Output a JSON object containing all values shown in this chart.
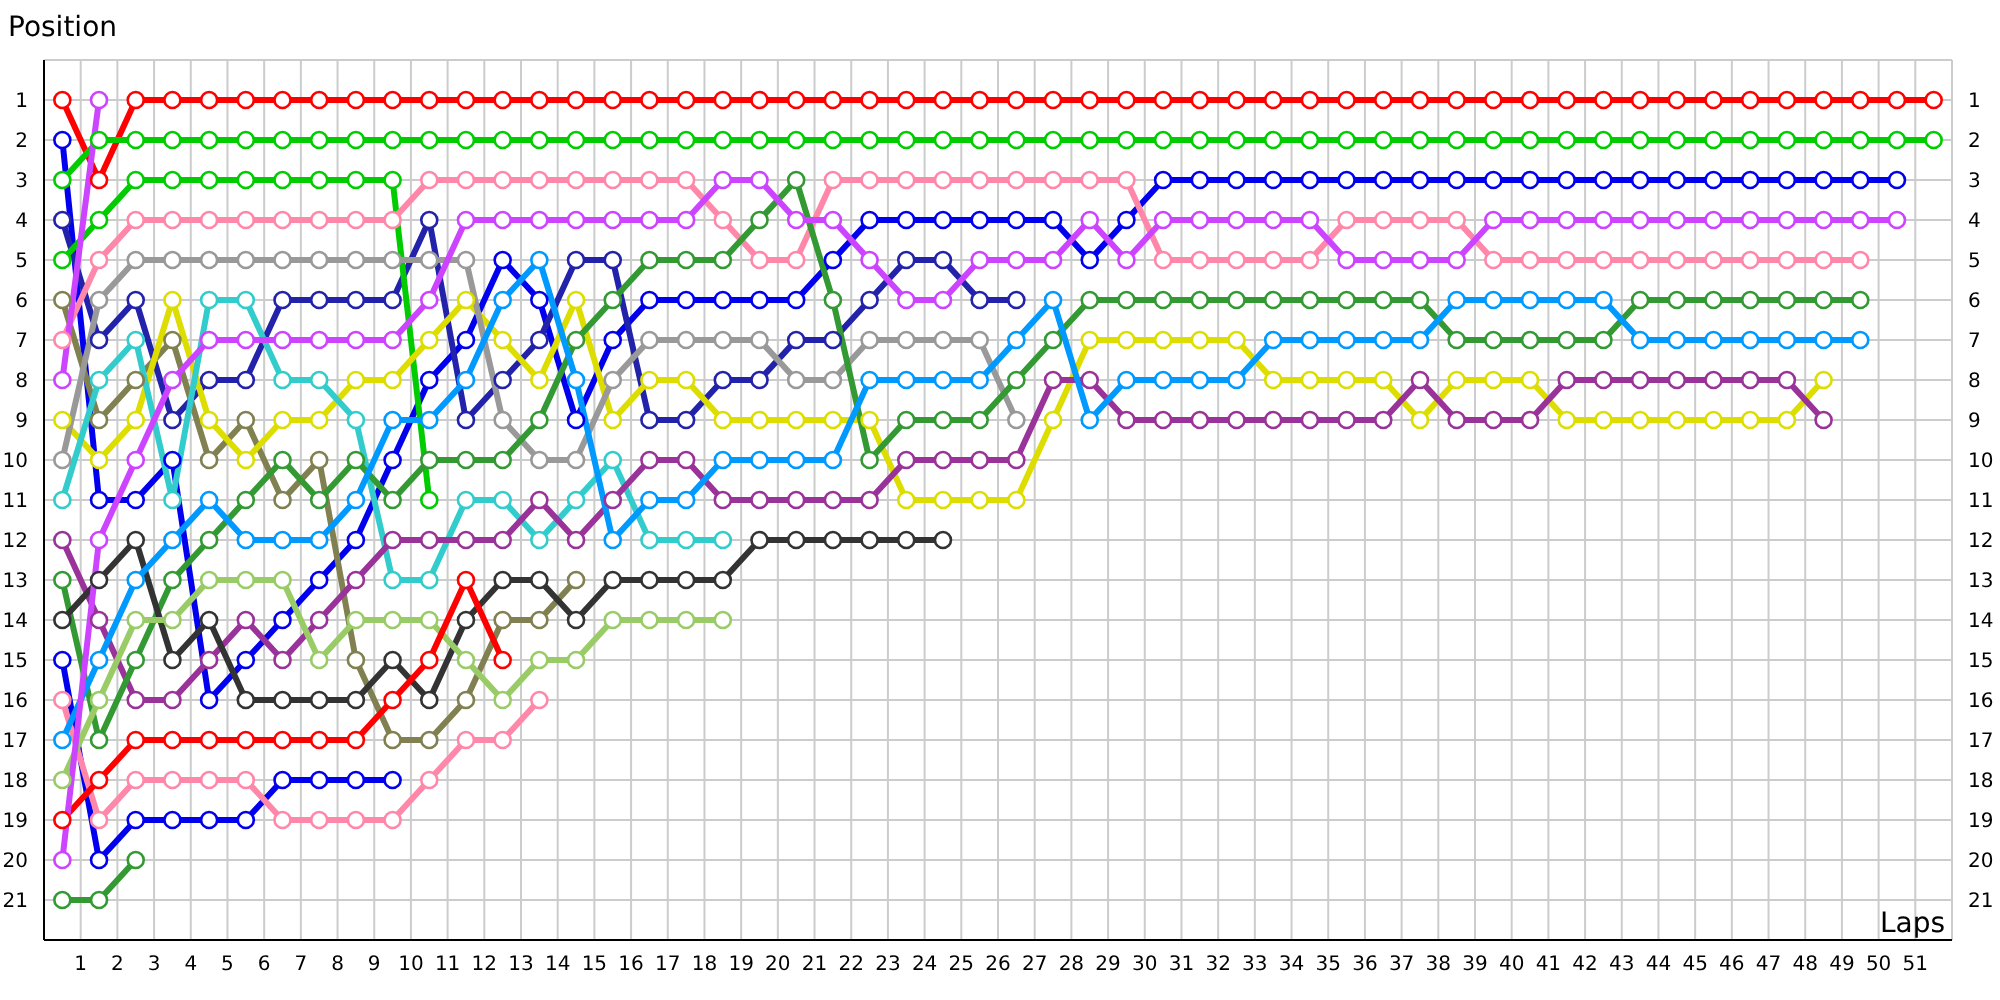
{
  "chart_data": {
    "type": "line",
    "xlabel": "Laps",
    "ylabel": "Position",
    "x": [
      0,
      1,
      2,
      3,
      4,
      5,
      6,
      7,
      8,
      9,
      10,
      11,
      12,
      13,
      14,
      15,
      16,
      17,
      18,
      19,
      20,
      21,
      22,
      23,
      24,
      25,
      26,
      27,
      28,
      29,
      30,
      31,
      32,
      33,
      34,
      35,
      36,
      37,
      38,
      39,
      40,
      41,
      42,
      43,
      44,
      45,
      46,
      47,
      48,
      49,
      50,
      51
    ],
    "xlim": [
      -0.5,
      51.5
    ],
    "xticks": [
      {
        "value": 0.5,
        "label": "1"
      },
      {
        "value": 1.5,
        "label": "2"
      },
      {
        "value": 2.5,
        "label": "3"
      },
      {
        "value": 3.5,
        "label": "4"
      },
      {
        "value": 4.5,
        "label": "5"
      },
      {
        "value": 5.5,
        "label": "6"
      },
      {
        "value": 6.5,
        "label": "7"
      },
      {
        "value": 7.5,
        "label": "8"
      },
      {
        "value": 8.5,
        "label": "9"
      },
      {
        "value": 9.5,
        "label": "10"
      },
      {
        "value": 10.5,
        "label": "11"
      },
      {
        "value": 11.5,
        "label": "12"
      },
      {
        "value": 12.5,
        "label": "13"
      },
      {
        "value": 13.5,
        "label": "14"
      },
      {
        "value": 14.5,
        "label": "15"
      },
      {
        "value": 15.5,
        "label": "16"
      },
      {
        "value": 16.5,
        "label": "17"
      },
      {
        "value": 17.5,
        "label": "18"
      },
      {
        "value": 18.5,
        "label": "19"
      },
      {
        "value": 19.5,
        "label": "20"
      },
      {
        "value": 20.5,
        "label": "21"
      },
      {
        "value": 21.5,
        "label": "22"
      },
      {
        "value": 22.5,
        "label": "23"
      },
      {
        "value": 23.5,
        "label": "24"
      },
      {
        "value": 24.5,
        "label": "25"
      },
      {
        "value": 25.5,
        "label": "26"
      },
      {
        "value": 26.5,
        "label": "27"
      },
      {
        "value": 27.5,
        "label": "28"
      },
      {
        "value": 28.5,
        "label": "29"
      },
      {
        "value": 29.5,
        "label": "30"
      },
      {
        "value": 30.5,
        "label": "31"
      },
      {
        "value": 31.5,
        "label": "32"
      },
      {
        "value": 32.5,
        "label": "33"
      },
      {
        "value": 33.5,
        "label": "34"
      },
      {
        "value": 34.5,
        "label": "35"
      },
      {
        "value": 35.5,
        "label": "36"
      },
      {
        "value": 36.5,
        "label": "37"
      },
      {
        "value": 37.5,
        "label": "38"
      },
      {
        "value": 38.5,
        "label": "39"
      },
      {
        "value": 39.5,
        "label": "40"
      },
      {
        "value": 40.5,
        "label": "41"
      },
      {
        "value": 41.5,
        "label": "42"
      },
      {
        "value": 42.5,
        "label": "43"
      },
      {
        "value": 43.5,
        "label": "44"
      },
      {
        "value": 44.5,
        "label": "45"
      },
      {
        "value": 45.5,
        "label": "46"
      },
      {
        "value": 46.5,
        "label": "47"
      },
      {
        "value": 47.5,
        "label": "48"
      },
      {
        "value": 48.5,
        "label": "49"
      },
      {
        "value": 49.5,
        "label": "50"
      },
      {
        "value": 50.5,
        "label": "51"
      }
    ],
    "ylim": [
      22,
      0
    ],
    "yticks": [
      1,
      2,
      3,
      4,
      5,
      6,
      7,
      8,
      9,
      10,
      11,
      12,
      13,
      14,
      15,
      16,
      17,
      18,
      19,
      20,
      21
    ],
    "y2lim": [
      22,
      0
    ],
    "y2ticks": [
      1,
      2,
      3,
      4,
      5,
      6,
      7,
      8,
      9,
      10,
      11,
      12,
      13,
      14,
      15,
      16,
      17,
      18,
      19,
      20,
      21
    ],
    "grid": true,
    "marker": "circle",
    "line_style": "solid",
    "series": [
      {
        "color": "#ff0000",
        "values": [
          1,
          3,
          1,
          1,
          1,
          1,
          1,
          1,
          1,
          1,
          1,
          1,
          1,
          1,
          1,
          1,
          1,
          1,
          1,
          1,
          1,
          1,
          1,
          1,
          1,
          1,
          1,
          1,
          1,
          1,
          1,
          1,
          1,
          1,
          1,
          1,
          1,
          1,
          1,
          1,
          1,
          1,
          1,
          1,
          1,
          1,
          1,
          1,
          1,
          1,
          1,
          1
        ]
      },
      {
        "color": "#0000ee",
        "values": [
          2,
          11,
          11,
          10,
          16,
          15,
          14,
          13,
          12,
          10,
          8,
          7,
          5,
          6,
          9,
          7,
          6,
          6,
          6,
          6,
          6,
          5,
          4,
          4,
          4,
          4,
          4,
          4,
          5,
          4,
          3,
          3,
          3,
          3,
          3,
          3,
          3,
          3,
          3,
          3,
          3,
          3,
          3,
          3,
          3,
          3,
          3,
          3,
          3,
          3,
          3,
          null
        ]
      },
      {
        "color": "#00cc00",
        "values": [
          3,
          2,
          2,
          2,
          2,
          2,
          2,
          2,
          2,
          2,
          2,
          2,
          2,
          2,
          2,
          2,
          2,
          2,
          2,
          2,
          2,
          2,
          2,
          2,
          2,
          2,
          2,
          2,
          2,
          2,
          2,
          2,
          2,
          2,
          2,
          2,
          2,
          2,
          2,
          2,
          2,
          2,
          2,
          2,
          2,
          2,
          2,
          2,
          2,
          2,
          2,
          2
        ]
      },
      {
        "color": "#2222aa",
        "values": [
          4,
          7,
          6,
          9,
          8,
          8,
          6,
          6,
          6,
          6,
          4,
          9,
          8,
          7,
          5,
          5,
          9,
          9,
          8,
          8,
          7,
          7,
          6,
          5,
          5,
          6,
          6,
          null,
          null,
          null,
          null,
          null,
          null,
          null,
          null,
          null,
          null,
          null,
          null,
          null,
          null,
          null,
          null,
          null,
          null,
          null,
          null,
          null,
          null,
          null,
          null,
          null
        ]
      },
      {
        "color": "#00cc00",
        "values": [
          5,
          4,
          3,
          3,
          3,
          3,
          3,
          3,
          3,
          3,
          11,
          null,
          null,
          null,
          null,
          null,
          null,
          null,
          null,
          null,
          null,
          null,
          null,
          null,
          null,
          null,
          null,
          null,
          null,
          null,
          null,
          null,
          null,
          null,
          null,
          null,
          null,
          null,
          null,
          null,
          null,
          null,
          null,
          null,
          null,
          null,
          null,
          null,
          null,
          null,
          null,
          null
        ]
      },
      {
        "color": "#808050",
        "values": [
          6,
          9,
          8,
          7,
          10,
          9,
          11,
          10,
          15,
          17,
          17,
          16,
          14,
          14,
          13,
          null,
          null,
          null,
          null,
          null,
          null,
          null,
          null,
          null,
          null,
          null,
          null,
          null,
          null,
          null,
          null,
          null,
          null,
          null,
          null,
          null,
          null,
          null,
          null,
          null,
          null,
          null,
          null,
          null,
          null,
          null,
          null,
          null,
          null,
          null,
          null,
          null
        ]
      },
      {
        "color": "#ff88aa",
        "values": [
          7,
          5,
          4,
          4,
          4,
          4,
          4,
          4,
          4,
          4,
          3,
          3,
          3,
          3,
          3,
          3,
          3,
          3,
          4,
          5,
          5,
          3,
          3,
          3,
          3,
          3,
          3,
          3,
          3,
          3,
          5,
          5,
          5,
          5,
          5,
          4,
          4,
          4,
          4,
          5,
          5,
          5,
          5,
          5,
          5,
          5,
          5,
          5,
          5,
          5,
          null,
          null
        ]
      },
      {
        "color": "#cc44ff",
        "values": [
          8,
          1,
          null,
          null,
          null,
          null,
          null,
          null,
          null,
          null,
          null,
          null,
          null,
          null,
          null,
          null,
          null,
          null,
          null,
          null,
          null,
          null,
          null,
          null,
          null,
          null,
          null,
          null,
          null,
          null,
          null,
          null,
          null,
          null,
          null,
          null,
          null,
          null,
          null,
          null,
          null,
          null,
          null,
          null,
          null,
          null,
          null,
          null,
          null,
          null,
          null,
          null
        ]
      },
      {
        "color": "#dddd00",
        "values": [
          9,
          10,
          9,
          6,
          9,
          10,
          9,
          9,
          8,
          8,
          7,
          6,
          7,
          8,
          6,
          9,
          8,
          8,
          9,
          9,
          9,
          9,
          9,
          11,
          11,
          11,
          11,
          9,
          7,
          7,
          7,
          7,
          7,
          8,
          8,
          8,
          8,
          9,
          8,
          8,
          8,
          9,
          9,
          9,
          9,
          9,
          9,
          9,
          8,
          null,
          null,
          null
        ]
      },
      {
        "color": "#999999",
        "values": [
          10,
          6,
          5,
          5,
          5,
          5,
          5,
          5,
          5,
          5,
          5,
          5,
          9,
          10,
          10,
          8,
          7,
          7,
          7,
          7,
          8,
          8,
          7,
          7,
          7,
          7,
          9,
          null,
          null,
          null,
          null,
          null,
          null,
          null,
          null,
          null,
          null,
          null,
          null,
          null,
          null,
          null,
          null,
          null,
          null,
          null,
          null,
          null,
          null,
          null,
          null,
          null
        ]
      },
      {
        "color": "#33cccc",
        "values": [
          11,
          8,
          7,
          11,
          6,
          6,
          8,
          8,
          9,
          13,
          13,
          11,
          11,
          12,
          11,
          10,
          12,
          12,
          12,
          null,
          null,
          null,
          null,
          null,
          null,
          null,
          null,
          null,
          null,
          null,
          null,
          null,
          null,
          null,
          null,
          null,
          null,
          null,
          null,
          null,
          null,
          null,
          null,
          null,
          null,
          null,
          null,
          null,
          null,
          null,
          null,
          null
        ]
      },
      {
        "color": "#993399",
        "values": [
          12,
          14,
          16,
          16,
          15,
          14,
          15,
          14,
          13,
          12,
          12,
          12,
          12,
          11,
          12,
          11,
          10,
          10,
          11,
          11,
          11,
          11,
          11,
          10,
          10,
          10,
          10,
          8,
          8,
          9,
          9,
          9,
          9,
          9,
          9,
          9,
          9,
          8,
          9,
          9,
          9,
          8,
          8,
          8,
          8,
          8,
          8,
          8,
          9,
          null,
          null,
          null
        ]
      },
      {
        "color": "#339933",
        "values": [
          13,
          17,
          15,
          13,
          12,
          11,
          10,
          11,
          10,
          11,
          10,
          10,
          10,
          9,
          7,
          6,
          5,
          5,
          5,
          4,
          3,
          6,
          10,
          9,
          9,
          9,
          8,
          7,
          6,
          6,
          6,
          6,
          6,
          6,
          6,
          6,
          6,
          6,
          7,
          7,
          7,
          7,
          7,
          6,
          6,
          6,
          6,
          6,
          6,
          6,
          null,
          null
        ]
      },
      {
        "color": "#333333",
        "values": [
          14,
          13,
          12,
          15,
          14,
          16,
          16,
          16,
          16,
          15,
          16,
          14,
          13,
          13,
          14,
          13,
          13,
          13,
          13,
          12,
          12,
          12,
          12,
          12,
          12,
          null,
          null,
          null,
          null,
          null,
          null,
          null,
          null,
          null,
          null,
          null,
          null,
          null,
          null,
          null,
          null,
          null,
          null,
          null,
          null,
          null,
          null,
          null,
          null,
          null,
          null,
          null
        ]
      },
      {
        "color": "#0000ee",
        "values": [
          15,
          20,
          19,
          19,
          19,
          19,
          18,
          18,
          18,
          18,
          null,
          null,
          null,
          null,
          null,
          null,
          null,
          null,
          null,
          null,
          null,
          null,
          null,
          null,
          null,
          null,
          null,
          null,
          null,
          null,
          null,
          null,
          null,
          null,
          null,
          null,
          null,
          null,
          null,
          null,
          null,
          null,
          null,
          null,
          null,
          null,
          null,
          null,
          null,
          null,
          null,
          null
        ]
      },
      {
        "color": "#ff88aa",
        "values": [
          16,
          19,
          18,
          18,
          18,
          18,
          19,
          19,
          19,
          19,
          18,
          17,
          17,
          16,
          null,
          null,
          null,
          null,
          null,
          null,
          null,
          null,
          null,
          null,
          null,
          null,
          null,
          null,
          null,
          null,
          null,
          null,
          null,
          null,
          null,
          null,
          null,
          null,
          null,
          null,
          null,
          null,
          null,
          null,
          null,
          null,
          null,
          null,
          null,
          null,
          null,
          null
        ]
      },
      {
        "color": "#0099ff",
        "values": [
          17,
          15,
          13,
          12,
          11,
          12,
          12,
          12,
          11,
          9,
          9,
          8,
          6,
          5,
          8,
          12,
          11,
          11,
          10,
          10,
          10,
          10,
          8,
          8,
          8,
          8,
          7,
          6,
          9,
          8,
          8,
          8,
          8,
          7,
          7,
          7,
          7,
          7,
          6,
          6,
          6,
          6,
          6,
          7,
          7,
          7,
          7,
          7,
          7,
          7,
          null,
          null
        ]
      },
      {
        "color": "#99cc66",
        "values": [
          18,
          16,
          14,
          14,
          13,
          13,
          13,
          15,
          14,
          14,
          14,
          15,
          16,
          15,
          15,
          14,
          14,
          14,
          14,
          null,
          null,
          null,
          null,
          null,
          null,
          null,
          null,
          null,
          null,
          null,
          null,
          null,
          null,
          null,
          null,
          null,
          null,
          null,
          null,
          null,
          null,
          null,
          null,
          null,
          null,
          null,
          null,
          null,
          null,
          null,
          null,
          null
        ]
      },
      {
        "color": "#ff0000",
        "values": [
          19,
          18,
          17,
          17,
          17,
          17,
          17,
          17,
          17,
          16,
          15,
          13,
          15,
          null,
          null,
          null,
          null,
          null,
          null,
          null,
          null,
          null,
          null,
          null,
          null,
          null,
          null,
          null,
          null,
          null,
          null,
          null,
          null,
          null,
          null,
          null,
          null,
          null,
          null,
          null,
          null,
          null,
          null,
          null,
          null,
          null,
          null,
          null,
          null,
          null,
          null,
          null
        ]
      },
      {
        "color": "#cc44ff",
        "values": [
          20,
          12,
          10,
          8,
          7,
          7,
          7,
          7,
          7,
          7,
          6,
          4,
          4,
          4,
          4,
          4,
          4,
          4,
          3,
          3,
          4,
          4,
          5,
          6,
          6,
          5,
          5,
          5,
          4,
          5,
          4,
          4,
          4,
          4,
          4,
          5,
          5,
          5,
          5,
          4,
          4,
          4,
          4,
          4,
          4,
          4,
          4,
          4,
          4,
          4,
          4,
          null
        ]
      },
      {
        "color": "#339933",
        "values": [
          21,
          21,
          20,
          null,
          null,
          null,
          null,
          null,
          null,
          null,
          null,
          null,
          null,
          null,
          null,
          null,
          null,
          null,
          null,
          null,
          null,
          null,
          null,
          null,
          null,
          null,
          null,
          null,
          null,
          null,
          null,
          null,
          null,
          null,
          null,
          null,
          null,
          null,
          null,
          null,
          null,
          null,
          null,
          null,
          null,
          null,
          null,
          null,
          null,
          null,
          null,
          null
        ]
      }
    ]
  }
}
